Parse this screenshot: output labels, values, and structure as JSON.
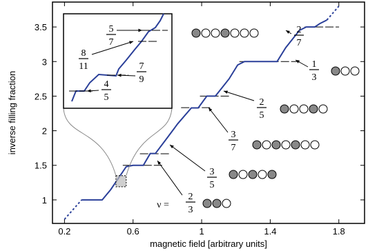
{
  "chart_data": {
    "type": "line",
    "xlabel": "magnetic field [arbitrary units]",
    "ylabel": "inverse filling fraction",
    "xlim": [
      0.13,
      1.95
    ],
    "ylim": [
      0.66,
      3.86
    ],
    "xticks": [
      "0.2",
      "0.6",
      "1",
      "1.4",
      "1.8"
    ],
    "yticks": [
      "1",
      "1.5",
      "2",
      "2.5",
      "3",
      "3.5"
    ],
    "grid": false,
    "line_color": "#2a3f99",
    "series": [
      {
        "x": [
          0.2,
          0.3,
          0.42,
          0.47,
          0.56,
          0.6,
          0.66,
          0.7,
          0.73,
          0.8,
          0.86,
          0.94,
          0.98,
          1.03,
          1.08,
          1.16,
          1.21,
          1.25,
          1.32,
          1.44,
          1.49,
          1.57,
          1.61,
          1.66,
          1.69,
          1.73,
          1.8
        ],
        "y": [
          0.72,
          1.0,
          1.0,
          1.15,
          1.48,
          1.5,
          1.5,
          1.67,
          1.67,
          1.9,
          2.1,
          2.33,
          2.33,
          2.5,
          2.5,
          2.75,
          2.95,
          3.0,
          3.0,
          3.0,
          3.2,
          3.45,
          3.5,
          3.5,
          3.55,
          3.6,
          3.8
        ]
      }
    ],
    "plateaus": [
      {
        "value": 1.5,
        "num": "2",
        "den": "3",
        "prefix": "ν =",
        "electrons": [
          "filled",
          "filled",
          "empty"
        ]
      },
      {
        "value": 1.667,
        "num": "3",
        "den": "5",
        "electrons": [
          "filled",
          "empty",
          "filled",
          "empty",
          "filled"
        ]
      },
      {
        "value": 2.333,
        "num": "3",
        "den": "7",
        "electrons": [
          "filled",
          "empty",
          "filled",
          "empty",
          "filled",
          "empty",
          "empty"
        ]
      },
      {
        "value": 2.5,
        "num": "2",
        "den": "5",
        "electrons": [
          "filled",
          "empty",
          "empty",
          "filled",
          "empty"
        ]
      },
      {
        "value": 3.0,
        "num": "1",
        "den": "3",
        "electrons": [
          "filled",
          "empty",
          "empty"
        ]
      },
      {
        "value": 3.5,
        "num": "2",
        "den": "7",
        "electrons": [
          "filled",
          "empty",
          "empty",
          "filled",
          "empty",
          "empty",
          "empty"
        ]
      }
    ],
    "inset": {
      "fractions": [
        {
          "num": "5",
          "den": "7"
        },
        {
          "num": "8",
          "den": "11"
        },
        {
          "num": "7",
          "den": "9"
        },
        {
          "num": "4",
          "den": "5"
        }
      ]
    }
  }
}
